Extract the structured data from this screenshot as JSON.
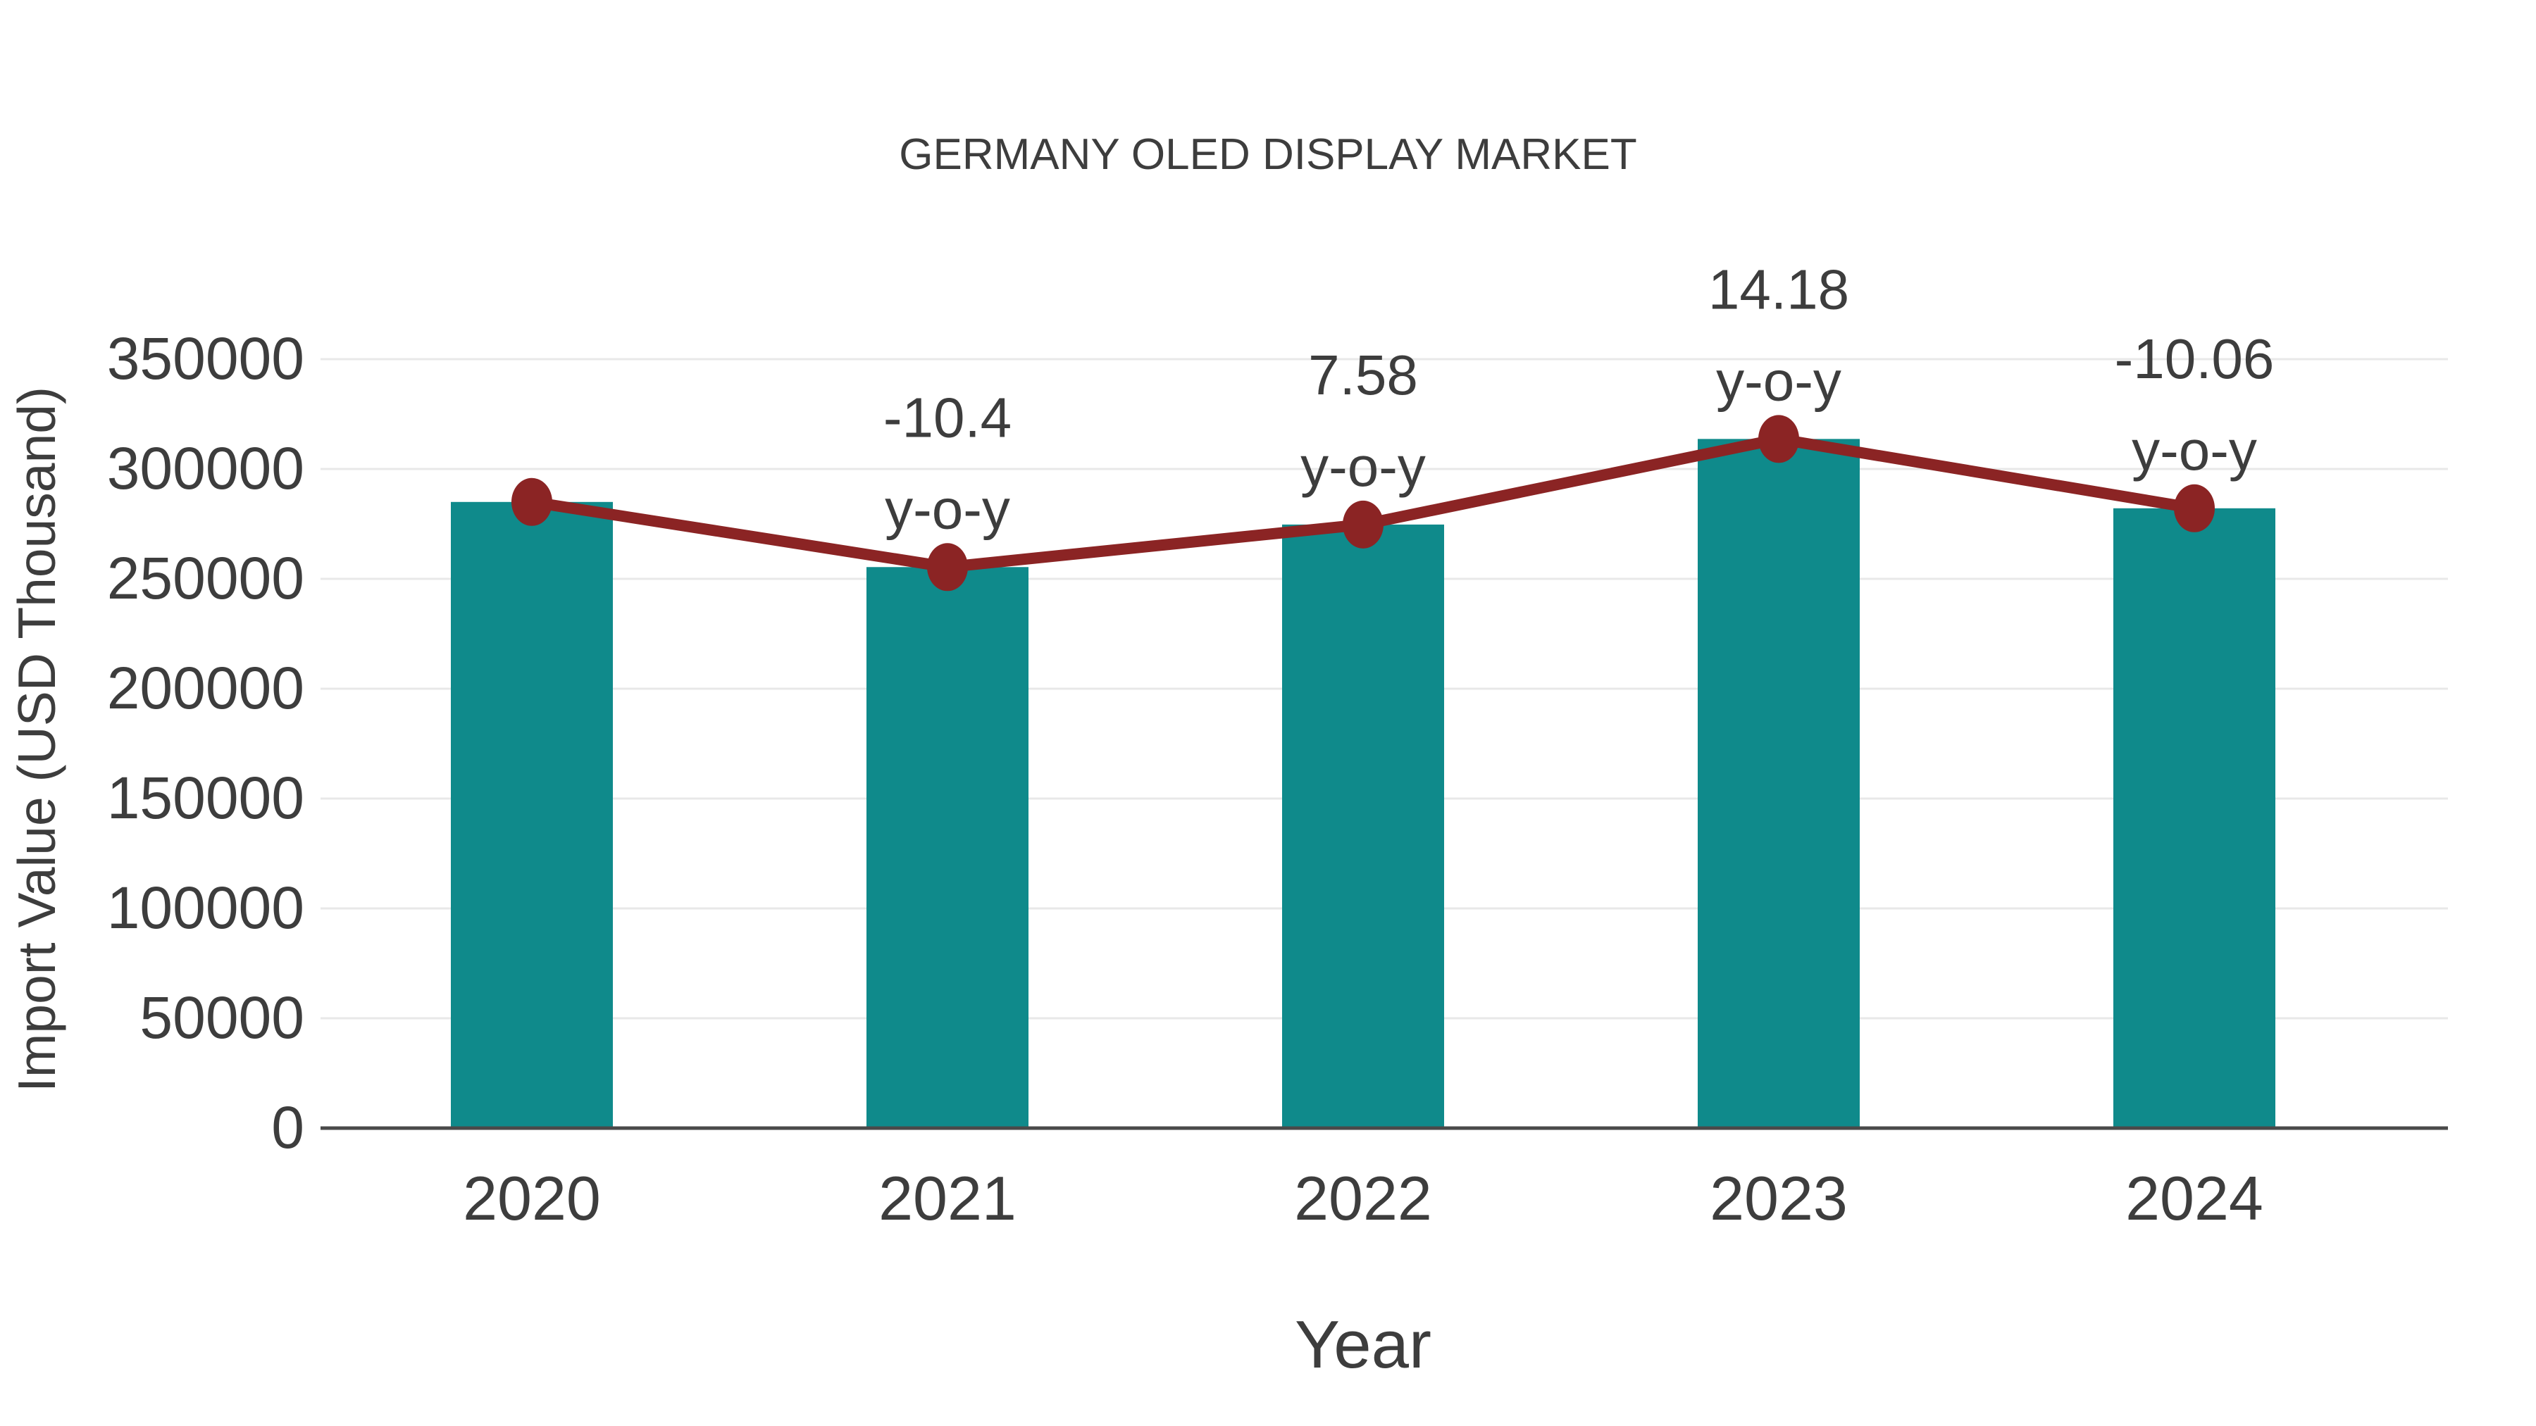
{
  "title": "GERMANY OLED DISPLAY MARKET",
  "colors": {
    "bar": "#0F8A8B",
    "line": "#8B2424",
    "text": "#3D3D3D",
    "gridline": "#E8E8E8",
    "axis_line": "#4A4A4A",
    "background": "#FFFFFF"
  },
  "chart_data": {
    "type": "bar",
    "title": "GERMANY OLED DISPLAY MARKET",
    "xlabel": "Year",
    "ylabel": "Import Value (USD Thousand)",
    "categories": [
      "2020",
      "2021",
      "2022",
      "2023",
      "2024"
    ],
    "series": [
      {
        "name": "Import Value (USD Thousand)",
        "type": "bar",
        "values": [
          285000,
          255360,
          274717,
          313672,
          282117
        ]
      },
      {
        "name": "y-o-y change (%)",
        "type": "line",
        "values": [
          null,
          -10.4,
          7.58,
          14.18,
          -10.06
        ]
      }
    ],
    "annotations": [
      {
        "category_index": 1,
        "line1": "-10.4",
        "line2": "y-o-y"
      },
      {
        "category_index": 2,
        "line1": "7.58",
        "line2": "y-o-y"
      },
      {
        "category_index": 3,
        "line1": "14.18",
        "line2": "y-o-y"
      },
      {
        "category_index": 4,
        "line1": "-10.06",
        "line2": "y-o-y"
      }
    ],
    "ylim": [
      0,
      350000
    ],
    "yticks": [
      0,
      50000,
      100000,
      150000,
      200000,
      250000,
      300000,
      350000
    ],
    "ytick_labels": [
      "0",
      "50000",
      "100000",
      "150000",
      "200000",
      "250000",
      "300000",
      "350000"
    ],
    "grid": true,
    "legend_position": "none"
  }
}
